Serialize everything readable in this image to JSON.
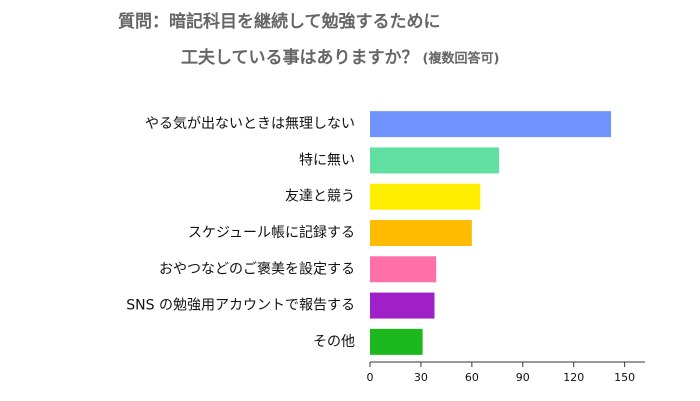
{
  "chart_data": {
    "type": "bar",
    "orientation": "horizontal",
    "title_lines": [
      "質問：暗記科目を継続して勉強するために",
      "工夫している事はありますか？"
    ],
    "title_note": "(複数回答可)",
    "categories": [
      "やる気が出ないときは無理しない",
      "特に無い",
      "友達と競う",
      "スケジュール帳に記録する",
      "おやつなどのご褒美を設定する",
      "SNS の勉強用アカウントで報告する",
      "その他"
    ],
    "values": [
      142,
      76,
      65,
      60,
      39,
      38,
      31
    ],
    "colors": [
      "#7094ff",
      "#5fe0a0",
      "#ffee00",
      "#ffbb00",
      "#ff6fa8",
      "#a020c8",
      "#1db81d"
    ],
    "xlim": [
      0,
      162
    ],
    "xticks": [
      0,
      30,
      60,
      90,
      120,
      150
    ]
  }
}
